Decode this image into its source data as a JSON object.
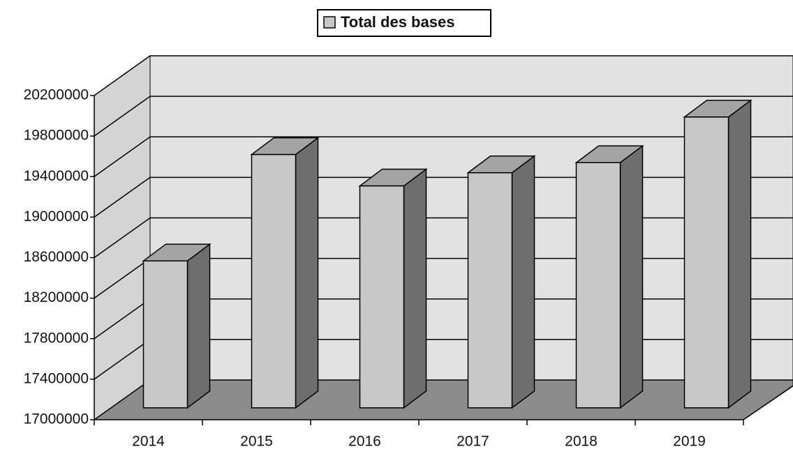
{
  "chart_data": {
    "type": "bar3d",
    "legend": "Total des bases",
    "categories": [
      "2014",
      "2015",
      "2016",
      "2017",
      "2018",
      "2019"
    ],
    "values": [
      18450000,
      19500000,
      19190000,
      19320000,
      19420000,
      19870000
    ],
    "color": "#c8c8c8",
    "ylim": [
      17000000,
      20200000
    ],
    "yticks": [
      17000000,
      17400000,
      17800000,
      18200000,
      18600000,
      19000000,
      19400000,
      19800000,
      20200000
    ],
    "grid": true
  }
}
